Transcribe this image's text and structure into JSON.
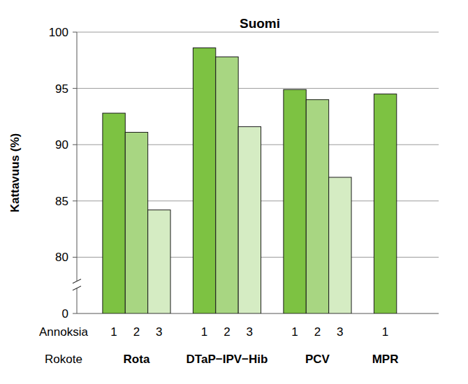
{
  "chart_data": {
    "type": "bar",
    "title": "Suomi",
    "ylabel": "Kattavuus (%)",
    "series_label": "Annoksia",
    "xlabel": "Rokote",
    "categories": [
      "Rota",
      "DTaP−IPV−Hib",
      "PCV",
      "MPR"
    ],
    "series": [
      {
        "name": "1",
        "color": "#7dc242",
        "values": [
          92.8,
          98.6,
          94.9,
          94.5
        ]
      },
      {
        "name": "2",
        "color": "#a8d682",
        "values": [
          91.1,
          97.8,
          94.0,
          null
        ]
      },
      {
        "name": "3",
        "color": "#d5ecc3",
        "values": [
          84.2,
          91.6,
          87.1,
          null
        ]
      }
    ],
    "ylim": [
      0,
      100
    ],
    "yticks": [
      0,
      80,
      85,
      90,
      95,
      100
    ],
    "grid": true
  }
}
